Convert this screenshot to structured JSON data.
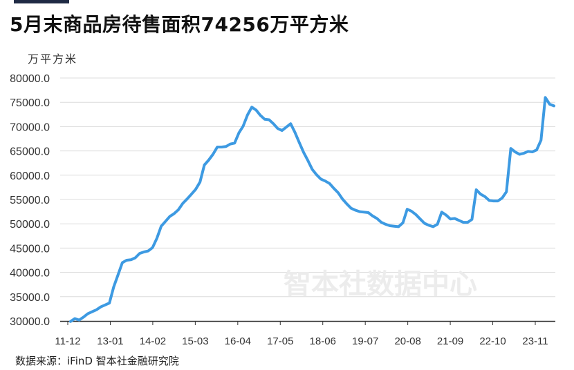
{
  "title": "5月末商品房待售面积74256万平方米",
  "unit_label": "万平方米",
  "source": "数据来源：iFinD 智本社金融研究院",
  "watermark": "智本社数据中心",
  "colors": {
    "line": "#3d9ae2",
    "grid": "#dcdcdc",
    "axis": "#333333",
    "topbar": "#1f2a44"
  },
  "chart_data": {
    "type": "line",
    "title": "5月末商品房待售面积74256万平方米",
    "ylabel": "万平方米",
    "ylim": [
      30000,
      80000
    ],
    "yticks": [
      "30000.0",
      "35000.0",
      "40000.0",
      "45000.0",
      "50000.0",
      "55000.0",
      "60000.0",
      "65000.0",
      "70000.0",
      "75000.0",
      "80000.0"
    ],
    "xticks": [
      "11-12",
      "13-01",
      "14-02",
      "15-03",
      "16-04",
      "17-05",
      "18-06",
      "19-07",
      "20-08",
      "21-09",
      "22-10",
      "23-11"
    ],
    "grid": true,
    "series": [
      {
        "values": [
          [
            0,
            29900
          ],
          [
            1,
            30500
          ],
          [
            2,
            30200
          ],
          [
            3,
            30800
          ],
          [
            4,
            31500
          ],
          [
            5,
            31900
          ],
          [
            6,
            32300
          ],
          [
            7,
            32900
          ],
          [
            8,
            33300
          ],
          [
            9,
            33700
          ],
          [
            10,
            37000
          ],
          [
            11,
            39500
          ],
          [
            12,
            42000
          ],
          [
            13,
            42500
          ],
          [
            14,
            42600
          ],
          [
            15,
            43000
          ],
          [
            16,
            43900
          ],
          [
            17,
            44200
          ],
          [
            18,
            44400
          ],
          [
            19,
            45100
          ],
          [
            20,
            47000
          ],
          [
            21,
            49500
          ],
          [
            22,
            50500
          ],
          [
            23,
            51500
          ],
          [
            24,
            52100
          ],
          [
            25,
            52900
          ],
          [
            26,
            54200
          ],
          [
            27,
            55100
          ],
          [
            28,
            56100
          ],
          [
            29,
            57100
          ],
          [
            30,
            58600
          ],
          [
            31,
            62100
          ],
          [
            32,
            63100
          ],
          [
            33,
            64300
          ],
          [
            34,
            65800
          ],
          [
            35,
            65800
          ],
          [
            36,
            65900
          ],
          [
            37,
            66400
          ],
          [
            38,
            66600
          ],
          [
            39,
            68700
          ],
          [
            40,
            70100
          ],
          [
            41,
            72400
          ],
          [
            42,
            74000
          ],
          [
            43,
            73400
          ],
          [
            44,
            72300
          ],
          [
            45,
            71500
          ],
          [
            46,
            71400
          ],
          [
            47,
            70600
          ],
          [
            48,
            69600
          ],
          [
            49,
            69200
          ],
          [
            50,
            69900
          ],
          [
            51,
            70600
          ],
          [
            52,
            68800
          ],
          [
            53,
            66700
          ],
          [
            54,
            64700
          ],
          [
            55,
            63000
          ],
          [
            56,
            61200
          ],
          [
            57,
            60100
          ],
          [
            58,
            59200
          ],
          [
            59,
            58800
          ],
          [
            60,
            58300
          ],
          [
            61,
            57300
          ],
          [
            62,
            56400
          ],
          [
            63,
            55100
          ],
          [
            64,
            54100
          ],
          [
            65,
            53200
          ],
          [
            66,
            52800
          ],
          [
            67,
            52500
          ],
          [
            68,
            52400
          ],
          [
            69,
            52300
          ],
          [
            70,
            51600
          ],
          [
            71,
            51100
          ],
          [
            72,
            50300
          ],
          [
            73,
            49900
          ],
          [
            74,
            49600
          ],
          [
            75,
            49500
          ],
          [
            76,
            49400
          ],
          [
            77,
            50200
          ],
          [
            78,
            53000
          ],
          [
            79,
            52600
          ],
          [
            80,
            51900
          ],
          [
            81,
            51000
          ],
          [
            82,
            50100
          ],
          [
            83,
            49700
          ],
          [
            84,
            49400
          ],
          [
            85,
            49900
          ],
          [
            86,
            52400
          ],
          [
            87,
            51800
          ],
          [
            88,
            51000
          ],
          [
            89,
            51100
          ],
          [
            90,
            50700
          ],
          [
            91,
            50300
          ],
          [
            92,
            50300
          ],
          [
            93,
            50900
          ],
          [
            94,
            57000
          ],
          [
            95,
            56100
          ],
          [
            96,
            55600
          ],
          [
            97,
            54800
          ],
          [
            98,
            54700
          ],
          [
            99,
            54700
          ],
          [
            100,
            55300
          ],
          [
            101,
            56600
          ],
          [
            102,
            65500
          ],
          [
            103,
            64800
          ],
          [
            104,
            64300
          ],
          [
            105,
            64500
          ],
          [
            106,
            64900
          ],
          [
            107,
            64800
          ],
          [
            108,
            65200
          ],
          [
            109,
            67200
          ],
          [
            110,
            76000
          ],
          [
            111,
            74600
          ],
          [
            112,
            74256
          ]
        ]
      }
    ]
  }
}
